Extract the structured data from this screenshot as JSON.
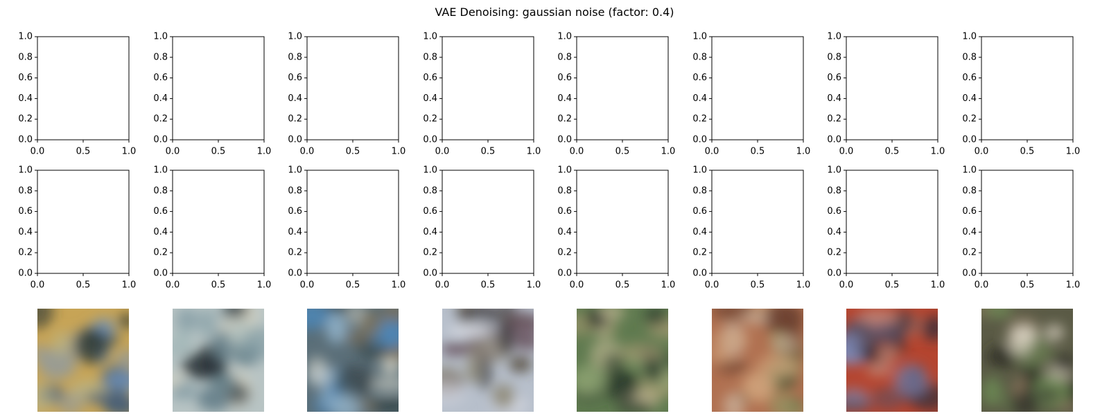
{
  "chart_data": {
    "type": "image_grid",
    "title": "VAE Denoising: gaussian noise (factor: 0.4)",
    "rows": 3,
    "columns": 8,
    "row_contents": [
      "empty-axes",
      "empty-axes",
      "images"
    ],
    "axes": {
      "xlim": [
        0,
        1
      ],
      "ylim": [
        0,
        1
      ],
      "xticks": [
        "0.0",
        "0.5",
        "1.0"
      ],
      "yticks": [
        "0.0",
        "0.2",
        "0.4",
        "0.6",
        "0.8",
        "1.0"
      ],
      "grid": false
    },
    "images": [
      {
        "index": 1,
        "colors": [
          "#c7a456",
          "#8f9aa0",
          "#3f5a78",
          "#6d8fb8",
          "#2f3b35",
          "#b9b58a"
        ]
      },
      {
        "index": 2,
        "colors": [
          "#b8c4c4",
          "#7f99a2",
          "#2a3438",
          "#d8d6c6",
          "#5f7a85",
          "#9fb5b6"
        ]
      },
      {
        "index": 3,
        "colors": [
          "#5a6e78",
          "#4d86b5",
          "#7f7158",
          "#2f3d3f",
          "#d0d0c5",
          "#8fb0c8"
        ]
      },
      {
        "index": 4,
        "colors": [
          "#b7bfcb",
          "#6a5560",
          "#2a2326",
          "#d8dbe3",
          "#8f8a78",
          "#4a4030"
        ]
      },
      {
        "index": 5,
        "colors": [
          "#5f7a4f",
          "#2f3f2f",
          "#a59a72",
          "#8aa070",
          "#1f2a24",
          "#c0b793"
        ]
      },
      {
        "index": 6,
        "colors": [
          "#b07050",
          "#8d9a66",
          "#d0a27a",
          "#6a4030",
          "#c9b09a",
          "#4d5a38"
        ]
      },
      {
        "index": 7,
        "colors": [
          "#b5452f",
          "#3a2f3a",
          "#7d8ec0",
          "#1e1a24",
          "#c08070",
          "#5a5060"
        ]
      },
      {
        "index": 8,
        "colors": [
          "#5a5a45",
          "#6d8a55",
          "#3a3a30",
          "#d8d0c0",
          "#8f7a60",
          "#2f3026"
        ]
      }
    ]
  }
}
